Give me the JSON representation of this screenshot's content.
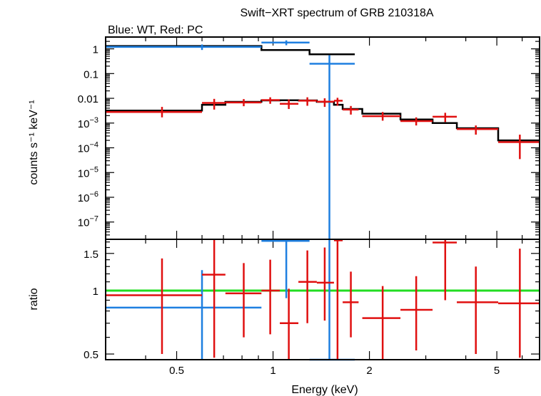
{
  "chart_data": [
    {
      "type": "step-spectrum",
      "title": "Swift−XRT spectrum of GRB 210318A",
      "subtitle": "Blue: WT, Red: PC",
      "xlabel": "Energy (keV)",
      "ylabel": "counts s⁻¹ keV⁻¹",
      "xscale": "log",
      "yscale": "log",
      "xlim": [
        0.3,
        6.8
      ],
      "ylim": [
        2e-08,
        3
      ],
      "x_ticks": [
        {
          "value": 0.5,
          "label": "0.5"
        },
        {
          "value": 1,
          "label": "1"
        },
        {
          "value": 2,
          "label": "2"
        },
        {
          "value": 5,
          "label": "5"
        }
      ],
      "y_ticks": [
        {
          "value": 1,
          "label": "1"
        },
        {
          "value": 0.1,
          "label": "0.1"
        },
        {
          "value": 0.01,
          "label": "0.01"
        },
        {
          "value": 0.001,
          "base": "10",
          "exp": "−3"
        },
        {
          "value": 0.0001,
          "base": "10",
          "exp": "−4"
        },
        {
          "value": 1e-05,
          "base": "10",
          "exp": "−5"
        },
        {
          "value": 1e-06,
          "base": "10",
          "exp": "−6"
        },
        {
          "value": 1e-07,
          "base": "10",
          "exp": "−7"
        }
      ],
      "series": [
        {
          "name": "WT",
          "color": "#1e7fe0",
          "points": [
            {
              "x": 0.6,
              "xlo": 0.3,
              "xhi": 0.92,
              "y": 1.2,
              "ylo": 0.9,
              "yhi": 1.5
            },
            {
              "x": 1.1,
              "xlo": 0.92,
              "xhi": 1.3,
              "y": 1.8,
              "ylo": 1.4,
              "yhi": 2.2
            },
            {
              "x": 1.5,
              "xlo": 1.3,
              "xhi": 1.8,
              "y": 0.25,
              "ylo": 2e-08,
              "yhi": 0.55
            }
          ]
        },
        {
          "name": "PC",
          "color": "#e01010",
          "points": [
            {
              "x": 0.45,
              "xlo": 0.3,
              "xhi": 0.6,
              "y": 0.0028,
              "ylo": 0.0017,
              "yhi": 0.0045
            },
            {
              "x": 0.655,
              "xlo": 0.6,
              "xhi": 0.71,
              "y": 0.0065,
              "ylo": 0.0035,
              "yhi": 0.0095
            },
            {
              "x": 0.81,
              "xlo": 0.71,
              "xhi": 0.92,
              "y": 0.0068,
              "ylo": 0.0048,
              "yhi": 0.0093
            },
            {
              "x": 0.98,
              "xlo": 0.92,
              "xhi": 1.05,
              "y": 0.0085,
              "ylo": 0.006,
              "yhi": 0.011
            },
            {
              "x": 1.12,
              "xlo": 1.05,
              "xhi": 1.2,
              "y": 0.006,
              "ylo": 0.0037,
              "yhi": 0.009
            },
            {
              "x": 1.28,
              "xlo": 1.2,
              "xhi": 1.37,
              "y": 0.008,
              "ylo": 0.005,
              "yhi": 0.011
            },
            {
              "x": 1.45,
              "xlo": 1.37,
              "xhi": 1.55,
              "y": 0.0073,
              "ylo": 0.0045,
              "yhi": 0.01
            },
            {
              "x": 1.59,
              "xlo": 1.55,
              "xhi": 1.65,
              "y": 0.008,
              "ylo": 0.005,
              "yhi": 0.0105
            },
            {
              "x": 1.75,
              "xlo": 1.65,
              "xhi": 1.85,
              "y": 0.0035,
              "ylo": 0.0022,
              "yhi": 0.0049
            },
            {
              "x": 2.2,
              "xlo": 1.9,
              "xhi": 2.5,
              "y": 0.0019,
              "ylo": 0.00125,
              "yhi": 0.0028
            },
            {
              "x": 2.8,
              "xlo": 2.5,
              "xhi": 3.15,
              "y": 0.0012,
              "ylo": 0.0008,
              "yhi": 0.0017
            },
            {
              "x": 3.45,
              "xlo": 3.15,
              "xhi": 3.75,
              "y": 0.0018,
              "ylo": 0.0011,
              "yhi": 0.0026
            },
            {
              "x": 4.3,
              "xlo": 3.75,
              "xhi": 5.05,
              "y": 0.00057,
              "ylo": 0.00034,
              "yhi": 0.0008
            },
            {
              "x": 5.9,
              "xlo": 5.05,
              "xhi": 6.8,
              "y": 0.00017,
              "ylo": 3.5e-05,
              "yhi": 0.00034
            }
          ]
        }
      ],
      "model": [
        {
          "name": "WT model",
          "color": "#000000",
          "steps": [
            [
              0.3,
              0.92,
              1.3
            ],
            [
              0.92,
              1.3,
              0.9
            ],
            [
              1.3,
              1.8,
              0.6
            ]
          ]
        },
        {
          "name": "PC model",
          "color": "#000000",
          "steps": [
            [
              0.3,
              0.6,
              0.0032
            ],
            [
              0.6,
              0.71,
              0.0055
            ],
            [
              0.71,
              0.92,
              0.0072
            ],
            [
              0.92,
              1.05,
              0.0082
            ],
            [
              1.05,
              1.2,
              0.0084
            ],
            [
              1.2,
              1.37,
              0.0082
            ],
            [
              1.37,
              1.55,
              0.0072
            ],
            [
              1.55,
              1.65,
              0.0055
            ],
            [
              1.65,
              1.9,
              0.0037
            ],
            [
              1.9,
              2.5,
              0.0024
            ],
            [
              2.5,
              3.15,
              0.0014
            ],
            [
              3.15,
              3.75,
              0.001
            ],
            [
              3.75,
              5.05,
              0.00062
            ],
            [
              5.05,
              6.8,
              0.0002
            ]
          ]
        }
      ]
    },
    {
      "type": "ratio",
      "xlabel": "Energy (keV)",
      "ylabel": "ratio",
      "xscale": "log",
      "yscale": "log",
      "xlim": [
        0.3,
        6.8
      ],
      "ylim": [
        0.47,
        1.75
      ],
      "x_ticks": [
        {
          "value": 0.5,
          "label": "0.5"
        },
        {
          "value": 1,
          "label": "1"
        },
        {
          "value": 2,
          "label": "2"
        },
        {
          "value": 5,
          "label": "5"
        }
      ],
      "y_ticks": [
        {
          "value": 0.5,
          "label": "0.5"
        },
        {
          "value": 1,
          "label": "1"
        },
        {
          "value": 1.5,
          "label": "1.5"
        }
      ],
      "reference_line": {
        "y": 1,
        "color": "#22dd22"
      },
      "series": [
        {
          "name": "WT",
          "color": "#1e7fe0",
          "points": [
            {
              "x": 0.6,
              "xlo": 0.3,
              "xhi": 0.92,
              "y": 0.83,
              "ylo": 0.47,
              "yhi": 1.25
            },
            {
              "x": 1.1,
              "xlo": 0.92,
              "xhi": 1.3,
              "y": 1.72,
              "ylo": 0.92,
              "yhi": 1.75
            },
            {
              "x": 1.5,
              "xlo": 1.3,
              "xhi": 1.8,
              "y": 0.47,
              "ylo": 0.47,
              "yhi": 1.75
            }
          ]
        },
        {
          "name": "PC",
          "color": "#e01010",
          "points": [
            {
              "x": 0.45,
              "xlo": 0.3,
              "xhi": 0.6,
              "y": 0.95,
              "ylo": 0.5,
              "yhi": 1.42
            },
            {
              "x": 0.655,
              "xlo": 0.6,
              "xhi": 0.71,
              "y": 1.19,
              "ylo": 0.48,
              "yhi": 1.75
            },
            {
              "x": 0.81,
              "xlo": 0.71,
              "xhi": 0.92,
              "y": 0.97,
              "ylo": 0.6,
              "yhi": 1.35
            },
            {
              "x": 0.98,
              "xlo": 0.92,
              "xhi": 1.05,
              "y": 1.0,
              "ylo": 0.62,
              "yhi": 1.4
            },
            {
              "x": 1.12,
              "xlo": 1.05,
              "xhi": 1.2,
              "y": 0.7,
              "ylo": 0.47,
              "yhi": 1.02
            },
            {
              "x": 1.28,
              "xlo": 1.2,
              "xhi": 1.37,
              "y": 1.1,
              "ylo": 0.7,
              "yhi": 1.55
            },
            {
              "x": 1.45,
              "xlo": 1.37,
              "xhi": 1.55,
              "y": 1.09,
              "ylo": 0.72,
              "yhi": 1.6
            },
            {
              "x": 1.59,
              "xlo": 1.55,
              "xhi": 1.65,
              "y": 1.73,
              "ylo": 0.47,
              "yhi": 1.75
            },
            {
              "x": 1.75,
              "xlo": 1.65,
              "xhi": 1.85,
              "y": 0.88,
              "ylo": 0.6,
              "yhi": 1.23
            },
            {
              "x": 2.2,
              "xlo": 1.9,
              "xhi": 2.5,
              "y": 0.74,
              "ylo": 0.47,
              "yhi": 1.05
            },
            {
              "x": 2.8,
              "xlo": 2.5,
              "xhi": 3.15,
              "y": 0.81,
              "ylo": 0.52,
              "yhi": 1.17
            },
            {
              "x": 3.45,
              "xlo": 3.15,
              "xhi": 3.75,
              "y": 1.69,
              "ylo": 0.9,
              "yhi": 1.75
            },
            {
              "x": 4.3,
              "xlo": 3.75,
              "xhi": 5.05,
              "y": 0.88,
              "ylo": 0.5,
              "yhi": 1.3
            },
            {
              "x": 5.9,
              "xlo": 5.05,
              "xhi": 6.8,
              "y": 0.87,
              "ylo": 0.48,
              "yhi": 1.58
            }
          ]
        }
      ]
    }
  ]
}
